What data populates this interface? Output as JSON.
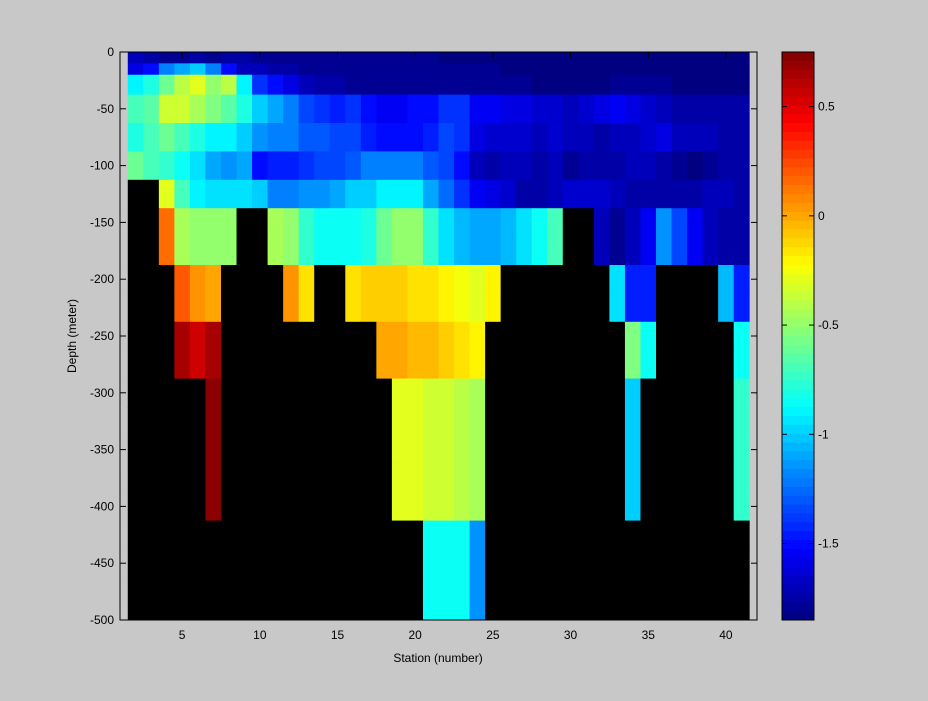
{
  "chart_data": {
    "type": "heatmap",
    "title": "",
    "xlabel": "Station (number)",
    "ylabel": "Depth (meter)",
    "xlim": [
      1,
      42
    ],
    "ylim": [
      -500,
      0
    ],
    "x_ticks": [
      5,
      10,
      15,
      20,
      25,
      30,
      35,
      40
    ],
    "x_tick_labels": [
      "5",
      "10",
      "15",
      "20",
      "25",
      "30",
      "35",
      "40"
    ],
    "y_ticks": [
      0,
      -50,
      -100,
      -150,
      -200,
      -250,
      -300,
      -350,
      -400,
      -450,
      -500
    ],
    "y_tick_labels": [
      "0",
      "-50",
      "-100",
      "-150",
      "-200",
      "-250",
      "-300",
      "-350",
      "-400",
      "-450",
      "-500"
    ],
    "colorbar": {
      "colormap": "jet",
      "clim": [
        -1.85,
        0.75
      ],
      "ticks": [
        0.5,
        0,
        -0.5,
        -1,
        -1.5
      ],
      "tick_labels": [
        "0.5",
        "0",
        "-0.5",
        "-1",
        "-1.5"
      ]
    },
    "missing_color": "#000000",
    "stations": [
      2,
      3,
      4,
      5,
      6,
      7,
      8,
      9,
      10,
      11,
      12,
      13,
      14,
      15,
      16,
      17,
      18,
      19,
      20,
      21,
      22,
      23,
      24,
      25,
      26,
      27,
      28,
      29,
      30,
      31,
      32,
      33,
      34,
      35,
      36,
      37,
      38,
      39,
      40,
      41
    ],
    "depth_levels": [
      -5,
      -15,
      -25,
      -50,
      -75,
      -100,
      -125,
      -150,
      -175,
      -200,
      -225,
      -250,
      -275,
      -300,
      -325,
      -350,
      -375,
      -400,
      -425,
      -450,
      -475,
      -500
    ],
    "values": [
      [
        -1.7,
        -1.75,
        -1.8,
        -1.8,
        -1.75,
        -1.8,
        -1.75,
        -1.75,
        -1.8,
        -1.8,
        -1.8,
        -1.8,
        -1.8,
        -1.8,
        -1.8,
        -1.8,
        -1.8,
        -1.8,
        -1.8,
        -1.8,
        -1.85,
        -1.85,
        -1.85,
        -1.85,
        -1.85,
        -1.85,
        -1.85,
        -1.85,
        -1.85,
        -1.85,
        -1.85,
        -1.85,
        -1.85,
        -1.85,
        -1.85,
        -1.85,
        -1.85,
        -1.85,
        -1.85,
        -1.85
      ],
      [
        -1.6,
        -1.5,
        -1.2,
        -1.1,
        -1.0,
        -1.2,
        -1.5,
        -1.7,
        -1.7,
        -1.75,
        -1.75,
        -1.8,
        -1.8,
        -1.8,
        -1.8,
        -1.8,
        -1.8,
        -1.8,
        -1.8,
        -1.8,
        -1.8,
        -1.8,
        -1.8,
        -1.8,
        -1.85,
        -1.85,
        -1.85,
        -1.85,
        -1.85,
        -1.85,
        -1.85,
        -1.85,
        -1.85,
        -1.85,
        -1.85,
        -1.85,
        -1.85,
        -1.85,
        -1.85,
        -1.85
      ],
      [
        -0.9,
        -0.8,
        -0.6,
        -0.4,
        -0.3,
        -0.5,
        -0.4,
        -0.9,
        -1.4,
        -1.5,
        -1.6,
        -1.7,
        -1.75,
        -1.75,
        -1.8,
        -1.8,
        -1.8,
        -1.8,
        -1.8,
        -1.8,
        -1.8,
        -1.8,
        -1.8,
        -1.8,
        -1.8,
        -1.8,
        -1.85,
        -1.85,
        -1.85,
        -1.85,
        -1.85,
        -1.8,
        -1.8,
        -1.8,
        -1.8,
        -1.85,
        -1.85,
        -1.85,
        -1.85,
        -1.85
      ],
      [
        -0.7,
        -0.65,
        -0.35,
        -0.35,
        -0.45,
        -0.55,
        -0.65,
        -0.8,
        -1.0,
        -1.1,
        -1.2,
        -1.35,
        -1.4,
        -1.45,
        -1.4,
        -1.5,
        -1.55,
        -1.55,
        -1.5,
        -1.5,
        -1.4,
        -1.4,
        -1.55,
        -1.55,
        -1.6,
        -1.6,
        -1.65,
        -1.65,
        -1.7,
        -1.65,
        -1.6,
        -1.55,
        -1.6,
        -1.65,
        -1.7,
        -1.75,
        -1.75,
        -1.75,
        -1.75,
        -1.75
      ],
      [
        -0.8,
        -0.7,
        -0.6,
        -0.7,
        -0.8,
        -0.9,
        -0.9,
        -1.0,
        -1.15,
        -1.2,
        -1.2,
        -1.3,
        -1.3,
        -1.35,
        -1.35,
        -1.45,
        -1.5,
        -1.5,
        -1.5,
        -1.45,
        -1.35,
        -1.4,
        -1.6,
        -1.65,
        -1.65,
        -1.65,
        -1.7,
        -1.65,
        -1.7,
        -1.7,
        -1.75,
        -1.7,
        -1.7,
        -1.65,
        -1.6,
        -1.7,
        -1.7,
        -1.7,
        -1.75,
        -1.75
      ],
      [
        -0.6,
        -0.7,
        -0.75,
        -0.85,
        -0.95,
        -1.1,
        -1.15,
        -1.1,
        -1.5,
        -1.45,
        -1.45,
        -1.4,
        -1.35,
        -1.35,
        -1.3,
        -1.2,
        -1.2,
        -1.2,
        -1.2,
        -1.3,
        -1.35,
        -1.5,
        -1.7,
        -1.75,
        -1.7,
        -1.7,
        -1.75,
        -1.7,
        -1.8,
        -1.75,
        -1.75,
        -1.75,
        -1.7,
        -1.7,
        -1.75,
        -1.8,
        -1.85,
        -1.8,
        -1.75,
        -1.75
      ],
      [
        null,
        null,
        -0.3,
        -0.7,
        -0.9,
        -0.95,
        -0.95,
        -0.95,
        -1.0,
        -1.2,
        -1.2,
        -1.15,
        -1.15,
        -1.1,
        -1.0,
        -1.0,
        -0.9,
        -0.9,
        -0.9,
        -1.1,
        -1.25,
        -1.4,
        -1.55,
        -1.6,
        -1.65,
        -1.75,
        -1.75,
        -1.7,
        -1.65,
        -1.65,
        -1.65,
        -1.7,
        -1.75,
        -1.75,
        -1.75,
        -1.75,
        -1.75,
        -1.7,
        -1.7,
        -1.75
      ],
      [
        null,
        null,
        0.15,
        -0.45,
        -0.5,
        -0.5,
        -0.5,
        null,
        null,
        -0.45,
        -0.5,
        -0.75,
        -0.85,
        -0.85,
        -0.85,
        -0.8,
        -0.6,
        -0.5,
        -0.5,
        -0.75,
        -0.95,
        -1.05,
        -1.1,
        -1.1,
        -1.05,
        -0.95,
        -0.85,
        -0.7,
        null,
        null,
        -1.7,
        -1.8,
        -1.7,
        -1.55,
        -1.15,
        -1.35,
        -1.55,
        -1.7,
        -1.75,
        -1.75
      ],
      [
        null,
        null,
        0.15,
        -0.45,
        -0.5,
        -0.5,
        -0.5,
        null,
        null,
        -0.45,
        -0.5,
        -0.75,
        -0.85,
        -0.85,
        -0.85,
        -0.8,
        -0.6,
        -0.5,
        -0.5,
        -0.75,
        -0.95,
        -1.05,
        -1.1,
        -1.1,
        -1.05,
        -0.95,
        -0.85,
        -0.7,
        null,
        null,
        -1.7,
        -1.8,
        -1.7,
        -1.55,
        -1.15,
        -1.35,
        -1.55,
        -1.7,
        -1.75,
        -1.75
      ],
      [
        null,
        null,
        null,
        0.2,
        0.05,
        0.0,
        null,
        null,
        null,
        null,
        0.05,
        -0.15,
        null,
        null,
        -0.15,
        -0.1,
        -0.1,
        -0.1,
        -0.15,
        -0.15,
        -0.2,
        -0.25,
        -0.3,
        -0.2,
        null,
        null,
        null,
        null,
        null,
        null,
        null,
        -0.95,
        -1.45,
        -1.45,
        null,
        null,
        null,
        null,
        -1.05,
        -1.45
      ],
      [
        null,
        null,
        null,
        0.2,
        0.05,
        0.0,
        null,
        null,
        null,
        null,
        0.05,
        -0.15,
        null,
        null,
        -0.15,
        -0.1,
        -0.1,
        -0.1,
        -0.15,
        -0.15,
        -0.2,
        -0.25,
        -0.3,
        -0.2,
        null,
        null,
        null,
        null,
        null,
        null,
        null,
        -0.95,
        -1.45,
        -1.45,
        null,
        null,
        null,
        null,
        -1.05,
        -1.45
      ],
      [
        null,
        null,
        null,
        0.65,
        0.55,
        0.65,
        null,
        null,
        null,
        null,
        null,
        null,
        null,
        null,
        null,
        null,
        0.0,
        0.0,
        -0.05,
        -0.05,
        -0.1,
        -0.15,
        -0.2,
        null,
        null,
        null,
        null,
        null,
        null,
        null,
        null,
        null,
        -0.55,
        -0.85,
        null,
        null,
        null,
        null,
        null,
        -0.85
      ],
      [
        null,
        null,
        null,
        0.65,
        0.55,
        0.65,
        null,
        null,
        null,
        null,
        null,
        null,
        null,
        null,
        null,
        null,
        0.0,
        0.0,
        -0.05,
        -0.05,
        -0.1,
        -0.15,
        -0.2,
        null,
        null,
        null,
        null,
        null,
        null,
        null,
        null,
        null,
        -0.55,
        -0.85,
        null,
        null,
        null,
        null,
        null,
        -0.85
      ],
      [
        null,
        null,
        null,
        null,
        null,
        0.72,
        null,
        null,
        null,
        null,
        null,
        null,
        null,
        null,
        null,
        null,
        null,
        -0.3,
        -0.3,
        -0.35,
        -0.35,
        -0.4,
        -0.45,
        null,
        null,
        null,
        null,
        null,
        null,
        null,
        null,
        null,
        -1.0,
        null,
        null,
        null,
        null,
        null,
        null,
        -0.75
      ],
      [
        null,
        null,
        null,
        null,
        null,
        0.72,
        null,
        null,
        null,
        null,
        null,
        null,
        null,
        null,
        null,
        null,
        null,
        -0.3,
        -0.3,
        -0.35,
        -0.35,
        -0.4,
        -0.45,
        null,
        null,
        null,
        null,
        null,
        null,
        null,
        null,
        null,
        -1.0,
        null,
        null,
        null,
        null,
        null,
        null,
        -0.75
      ],
      [
        null,
        null,
        null,
        null,
        null,
        0.72,
        null,
        null,
        null,
        null,
        null,
        null,
        null,
        null,
        null,
        null,
        null,
        -0.3,
        -0.3,
        -0.35,
        -0.35,
        -0.4,
        -0.45,
        null,
        null,
        null,
        null,
        null,
        null,
        null,
        null,
        null,
        -1.0,
        null,
        null,
        null,
        null,
        null,
        null,
        -0.75
      ],
      [
        null,
        null,
        null,
        null,
        null,
        0.72,
        null,
        null,
        null,
        null,
        null,
        null,
        null,
        null,
        null,
        null,
        null,
        -0.3,
        -0.3,
        -0.35,
        -0.35,
        -0.4,
        -0.45,
        null,
        null,
        null,
        null,
        null,
        null,
        null,
        null,
        null,
        -1.0,
        null,
        null,
        null,
        null,
        null,
        null,
        -0.75
      ],
      [
        null,
        null,
        null,
        null,
        null,
        0.72,
        null,
        null,
        null,
        null,
        null,
        null,
        null,
        null,
        null,
        null,
        null,
        -0.3,
        -0.3,
        -0.35,
        -0.35,
        -0.4,
        -0.45,
        null,
        null,
        null,
        null,
        null,
        null,
        null,
        null,
        null,
        -1.0,
        null,
        null,
        null,
        null,
        null,
        null,
        -0.75
      ],
      [
        null,
        null,
        null,
        null,
        null,
        null,
        null,
        null,
        null,
        null,
        null,
        null,
        null,
        null,
        null,
        null,
        null,
        null,
        null,
        -0.85,
        -0.85,
        -0.85,
        -1.15,
        null,
        null,
        null,
        null,
        null,
        null,
        null,
        null,
        null,
        null,
        null,
        null,
        null,
        null,
        null,
        null,
        null
      ],
      [
        null,
        null,
        null,
        null,
        null,
        null,
        null,
        null,
        null,
        null,
        null,
        null,
        null,
        null,
        null,
        null,
        null,
        null,
        null,
        -0.85,
        -0.85,
        -0.85,
        -1.15,
        null,
        null,
        null,
        null,
        null,
        null,
        null,
        null,
        null,
        null,
        null,
        null,
        null,
        null,
        null,
        null,
        null
      ],
      [
        null,
        null,
        null,
        null,
        null,
        null,
        null,
        null,
        null,
        null,
        null,
        null,
        null,
        null,
        null,
        null,
        null,
        null,
        null,
        -0.85,
        -0.85,
        -0.85,
        -1.15,
        null,
        null,
        null,
        null,
        null,
        null,
        null,
        null,
        null,
        null,
        null,
        null,
        null,
        null,
        null,
        null,
        null
      ],
      [
        null,
        null,
        null,
        null,
        null,
        null,
        null,
        null,
        null,
        null,
        null,
        null,
        null,
        null,
        null,
        null,
        null,
        null,
        null,
        -0.85,
        -0.85,
        -0.85,
        -1.15,
        null,
        null,
        null,
        null,
        null,
        null,
        null,
        null,
        null,
        null,
        null,
        null,
        null,
        null,
        null,
        null,
        null
      ]
    ]
  }
}
